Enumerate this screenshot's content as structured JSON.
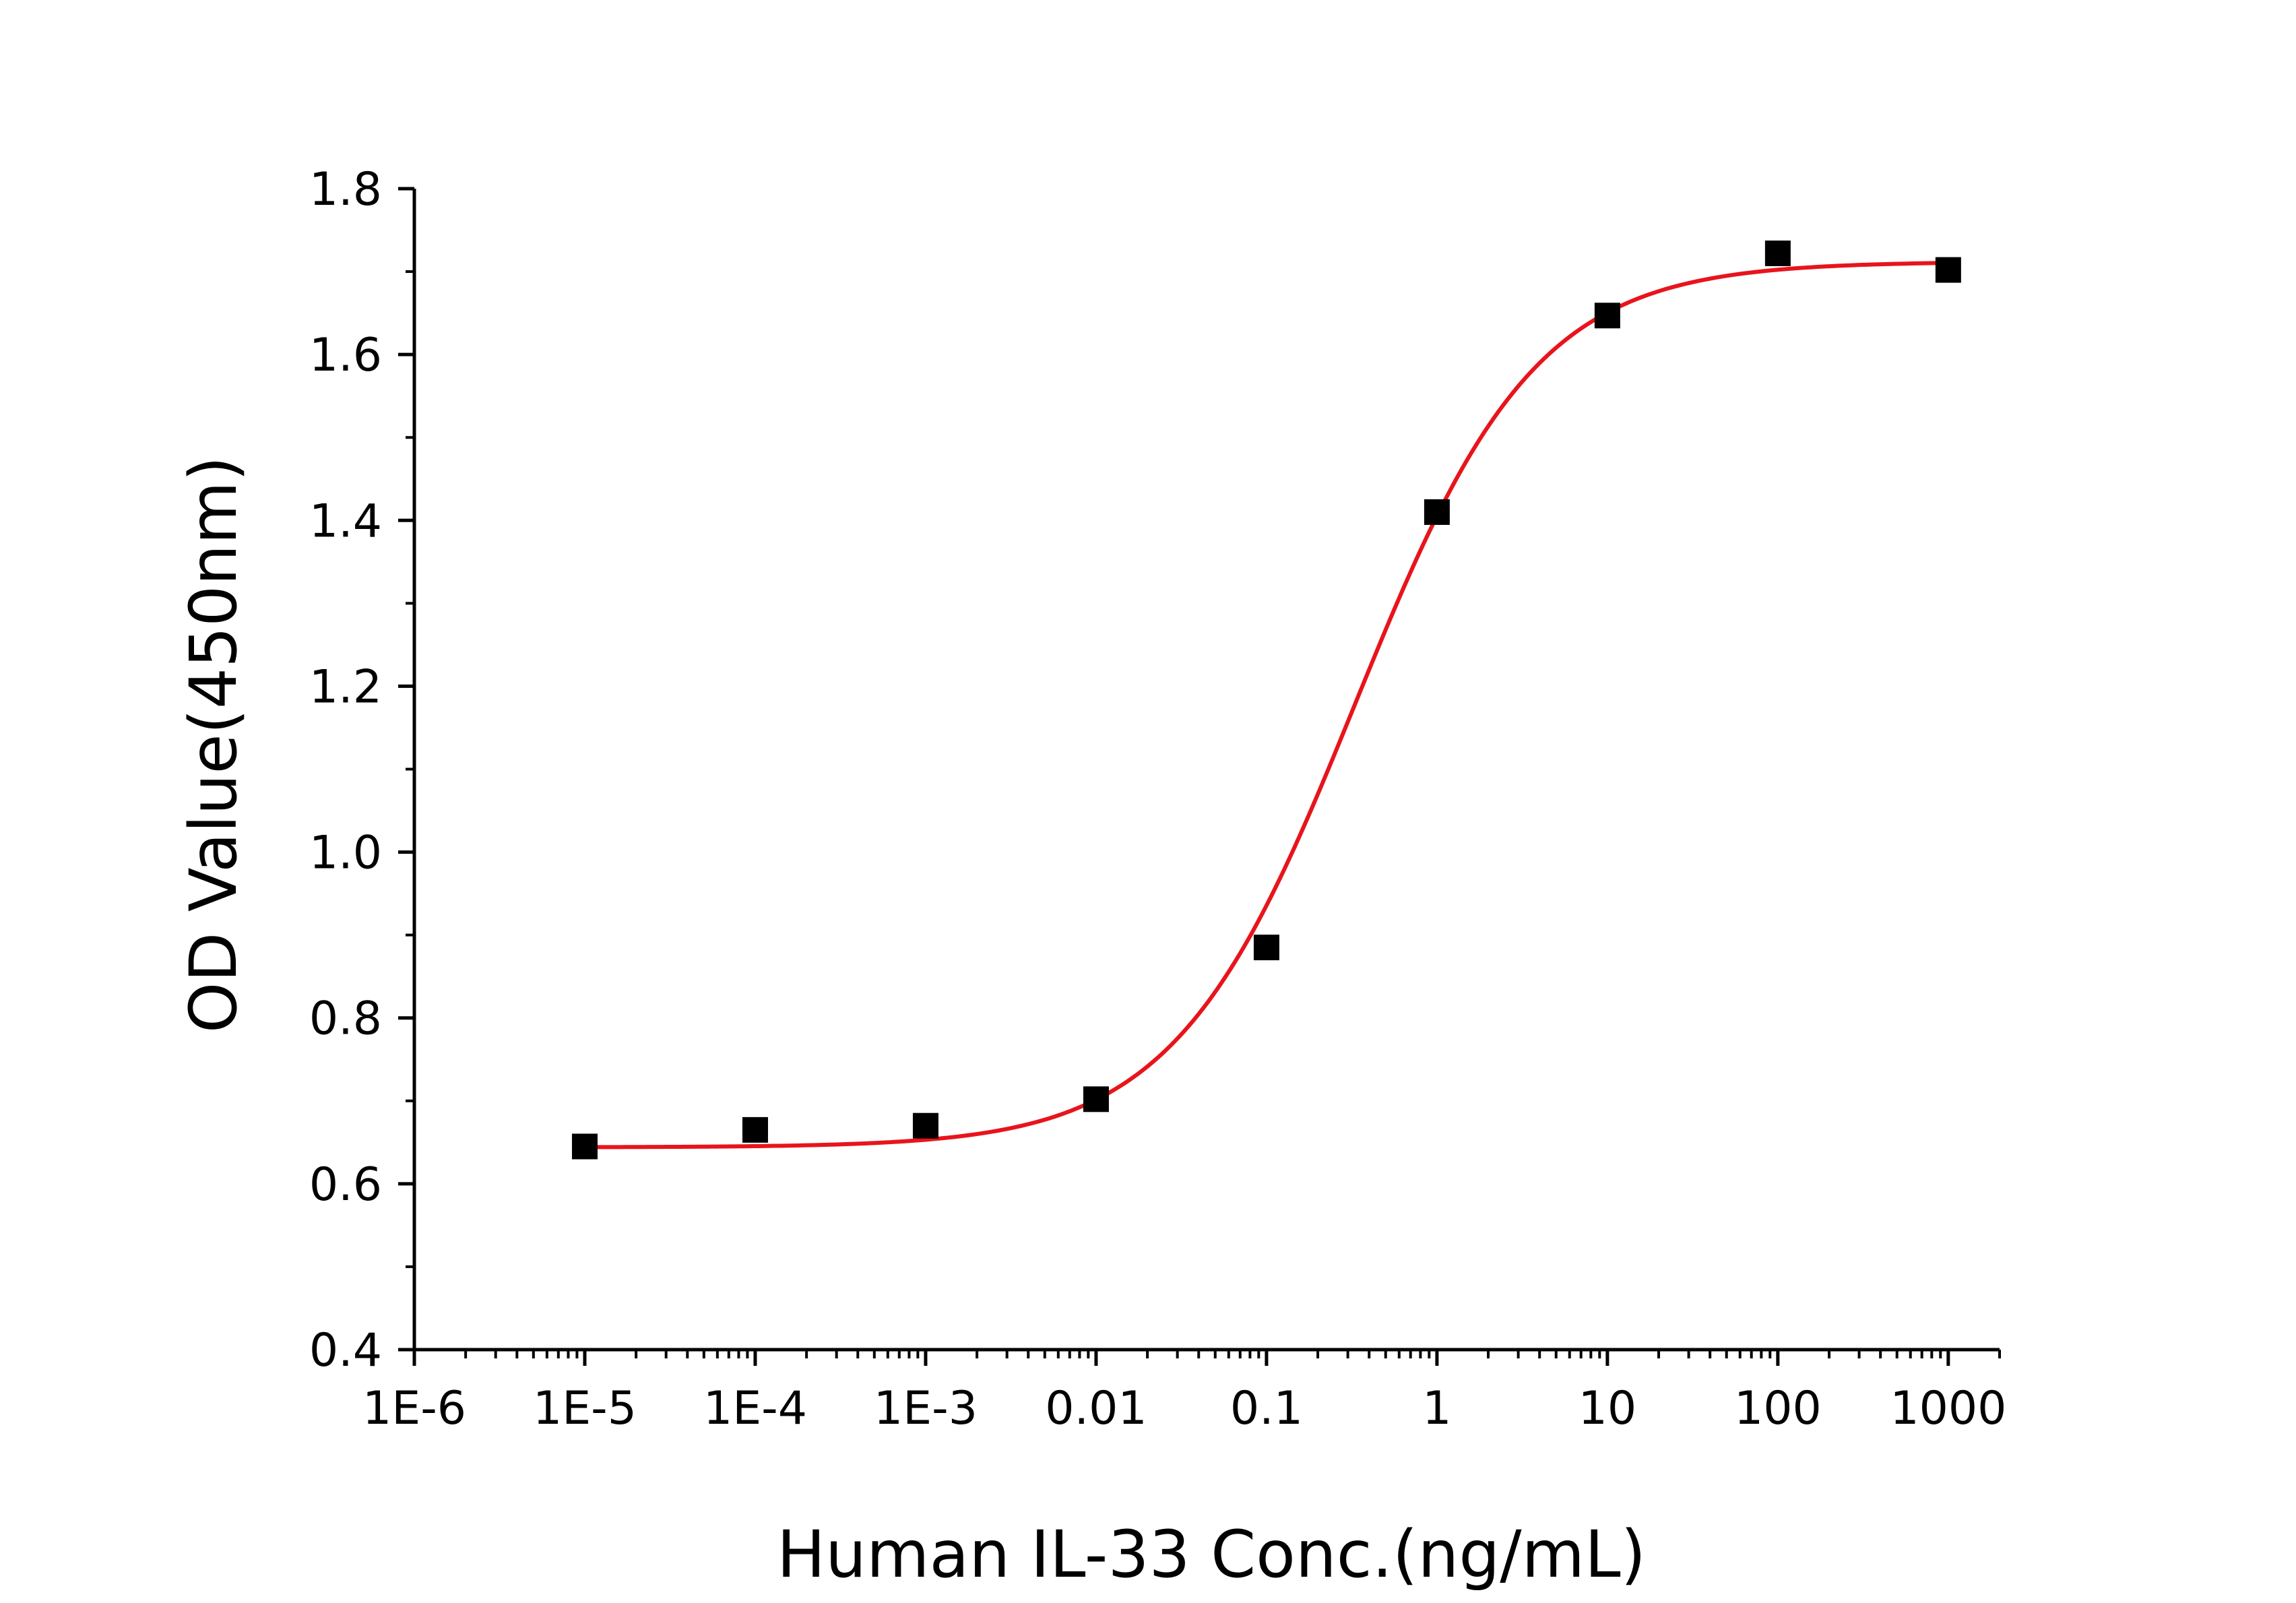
{
  "chart_data": {
    "type": "scatter",
    "title": "",
    "xlabel": "Human IL-33 Conc.(ng/mL)",
    "ylabel": "OD Value(450nm)",
    "x_scale": "log",
    "xlim": [
      1e-06,
      2000
    ],
    "ylim": [
      0.4,
      1.8
    ],
    "x_ticks": [
      1e-06,
      1e-05,
      0.0001,
      0.001,
      0.01,
      0.1,
      1,
      10,
      100,
      1000
    ],
    "x_tick_labels": [
      "1E-6",
      "1E-5",
      "1E-4",
      "1E-3",
      "0.01",
      "0.1",
      "1",
      "10",
      "100",
      "1000"
    ],
    "y_ticks": [
      0.4,
      0.6,
      0.8,
      1.0,
      1.2,
      1.4,
      1.6,
      1.8
    ],
    "y_tick_labels": [
      "0.4",
      "0.6",
      "0.8",
      "1.0",
      "1.2",
      "1.4",
      "1.6",
      "1.8"
    ],
    "grid": false,
    "series": [
      {
        "kind": "points",
        "marker": "square",
        "color": "#000000",
        "x": [
          1e-05,
          0.0001,
          0.001,
          0.01,
          0.1,
          1,
          10,
          100,
          1000
        ],
        "y": [
          0.645,
          0.665,
          0.67,
          0.702,
          0.885,
          1.41,
          1.647,
          1.722,
          1.702
        ]
      },
      {
        "kind": "fit",
        "model": "4PL",
        "color": "#e8141c",
        "params": {
          "bottom": 0.644,
          "top": 1.712,
          "ec50": 0.33,
          "hill": 0.82
        },
        "x_range": [
          1e-05,
          1000
        ]
      }
    ]
  }
}
